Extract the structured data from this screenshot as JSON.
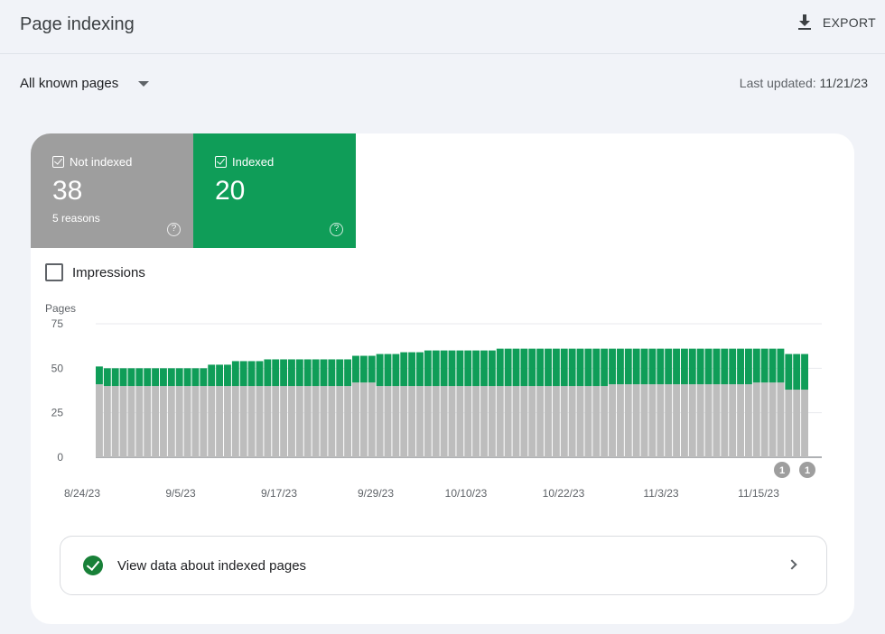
{
  "header": {
    "title": "Page indexing",
    "export_label": "EXPORT"
  },
  "filter": {
    "selected": "All known pages"
  },
  "last_updated": {
    "label": "Last updated:",
    "value": "11/21/23"
  },
  "tiles": {
    "not_indexed": {
      "label": "Not indexed",
      "count": "38",
      "sub": "5 reasons",
      "color": "#9e9e9e"
    },
    "indexed": {
      "label": "Indexed",
      "count": "20",
      "color": "#0f9d58"
    }
  },
  "impressions_label": "Impressions",
  "chart_data": {
    "type": "bar",
    "stacked": true,
    "ylabel": "Pages",
    "ylim": [
      0,
      75
    ],
    "yticks": [
      0,
      25,
      50,
      75
    ],
    "xticks": [
      "8/24/23",
      "9/5/23",
      "9/17/23",
      "9/29/23",
      "10/10/23",
      "10/22/23",
      "11/3/23",
      "11/15/23"
    ],
    "grid": true,
    "series": [
      {
        "name": "Not indexed",
        "color": "#bdbdbd",
        "values": [
          41,
          40,
          40,
          40,
          40,
          40,
          40,
          40,
          40,
          40,
          40,
          40,
          40,
          40,
          40,
          40,
          40,
          40,
          40,
          40,
          40,
          40,
          40,
          40,
          40,
          40,
          40,
          40,
          40,
          40,
          40,
          40,
          42,
          42,
          42,
          40,
          40,
          40,
          40,
          40,
          40,
          40,
          40,
          40,
          40,
          40,
          40,
          40,
          40,
          40,
          40,
          40,
          40,
          40,
          40,
          40,
          40,
          40,
          40,
          40,
          40,
          40,
          40,
          40,
          41,
          41,
          41,
          41,
          41,
          41,
          41,
          41,
          41,
          41,
          41,
          41,
          41,
          41,
          41,
          41,
          41,
          41,
          42,
          42,
          42,
          42,
          38,
          38,
          38
        ]
      },
      {
        "name": "Indexed",
        "color": "#0f9d58",
        "values": [
          10,
          10,
          10,
          10,
          10,
          10,
          10,
          10,
          10,
          10,
          10,
          10,
          10,
          10,
          12,
          12,
          12,
          14,
          14,
          14,
          14,
          15,
          15,
          15,
          15,
          15,
          15,
          15,
          15,
          15,
          15,
          15,
          15,
          15,
          15,
          18,
          18,
          18,
          19,
          19,
          19,
          20,
          20,
          20,
          20,
          20,
          20,
          20,
          20,
          20,
          21,
          21,
          21,
          21,
          21,
          21,
          21,
          21,
          21,
          21,
          21,
          21,
          21,
          21,
          20,
          20,
          20,
          20,
          20,
          20,
          20,
          20,
          20,
          20,
          20,
          20,
          20,
          20,
          20,
          20,
          20,
          20,
          19,
          19,
          19,
          19,
          20,
          20,
          20
        ]
      }
    ],
    "annotations": [
      "1",
      "1"
    ]
  },
  "link_card": {
    "label": "View data about indexed pages"
  }
}
